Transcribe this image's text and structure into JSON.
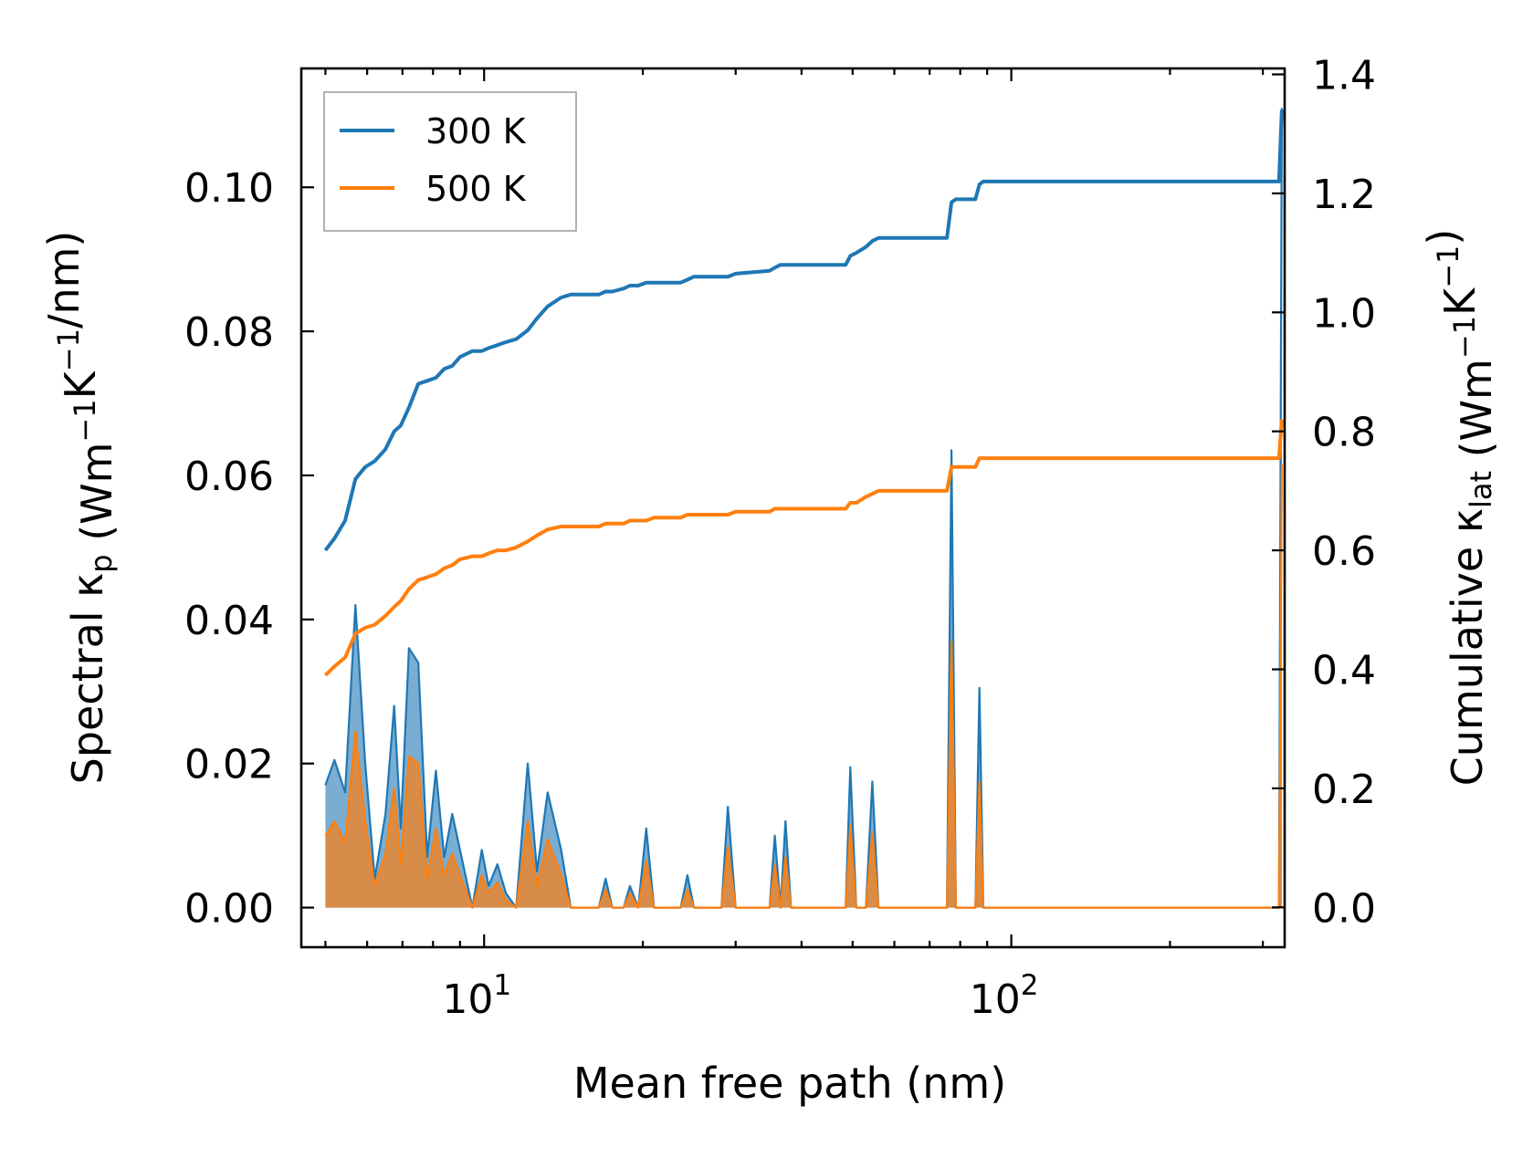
{
  "chart_data": {
    "type": "line",
    "xlabel": "Mean free path (nm)",
    "ylabel_left": "Spectral κ_p (Wm⁻¹K⁻¹/nm)",
    "ylabel_right": "Cumulative κ_lat (Wm⁻¹K⁻¹)",
    "x_scale": "log",
    "xlim": [
      4.5,
      330
    ],
    "x_ticks": [
      {
        "value": 10,
        "base": "10",
        "exp": "1"
      },
      {
        "value": 100,
        "base": "10",
        "exp": "2"
      }
    ],
    "ylim_left": [
      -0.0055,
      0.1165
    ],
    "ylim_right": [
      -0.067,
      1.41
    ],
    "y_ticks_left": [
      {
        "value": 0.0,
        "label": "0.00"
      },
      {
        "value": 0.02,
        "label": "0.02"
      },
      {
        "value": 0.04,
        "label": "0.04"
      },
      {
        "value": 0.06,
        "label": "0.06"
      },
      {
        "value": 0.08,
        "label": "0.08"
      },
      {
        "value": 0.1,
        "label": "0.10"
      }
    ],
    "y_ticks_right": [
      {
        "value": 0.0,
        "label": "0.0"
      },
      {
        "value": 0.2,
        "label": "0.2"
      },
      {
        "value": 0.4,
        "label": "0.4"
      },
      {
        "value": 0.6,
        "label": "0.6"
      },
      {
        "value": 0.8,
        "label": "0.8"
      },
      {
        "value": 1.0,
        "label": "1.0"
      },
      {
        "value": 1.2,
        "label": "1.2"
      },
      {
        "value": 1.4,
        "label": "1.4"
      }
    ],
    "grid": false,
    "legend_position": "top-left",
    "series": [
      {
        "name": "300 K",
        "color": "#1f77b4",
        "spectral": [
          [
            5.0,
            0.017
          ],
          [
            5.2,
            0.0205
          ],
          [
            5.45,
            0.016
          ],
          [
            5.7,
            0.042
          ],
          [
            5.95,
            0.02
          ],
          [
            6.2,
            0.004
          ],
          [
            6.5,
            0.013
          ],
          [
            6.75,
            0.028
          ],
          [
            6.95,
            0.011
          ],
          [
            7.2,
            0.036
          ],
          [
            7.5,
            0.034
          ],
          [
            7.8,
            0.007
          ],
          [
            8.1,
            0.019
          ],
          [
            8.4,
            0.007
          ],
          [
            8.7,
            0.013
          ],
          [
            9.0,
            0.008
          ],
          [
            9.5,
            0.0
          ],
          [
            9.9,
            0.008
          ],
          [
            10.2,
            0.003
          ],
          [
            10.6,
            0.006
          ],
          [
            11.0,
            0.002
          ],
          [
            11.5,
            0.0
          ],
          [
            12.1,
            0.02
          ],
          [
            12.6,
            0.005
          ],
          [
            13.2,
            0.016
          ],
          [
            14.0,
            0.008
          ],
          [
            14.6,
            0.0
          ],
          [
            16.5,
            0.0
          ],
          [
            17.0,
            0.004
          ],
          [
            17.5,
            0.0
          ],
          [
            18.4,
            0.0
          ],
          [
            18.9,
            0.003
          ],
          [
            19.6,
            0.0
          ],
          [
            20.3,
            0.011
          ],
          [
            21.0,
            0.0
          ],
          [
            23.6,
            0.0
          ],
          [
            24.3,
            0.0045
          ],
          [
            25.0,
            0.0
          ],
          [
            28.2,
            0.0
          ],
          [
            29.0,
            0.014
          ],
          [
            30.0,
            0.0
          ],
          [
            34.8,
            0.0
          ],
          [
            35.6,
            0.01
          ],
          [
            36.5,
            0.0
          ],
          [
            37.3,
            0.012
          ],
          [
            38.2,
            0.0
          ],
          [
            48.5,
            0.0
          ],
          [
            49.5,
            0.0195
          ],
          [
            50.8,
            0.0
          ],
          [
            53.0,
            0.0
          ],
          [
            54.5,
            0.0175
          ],
          [
            56.0,
            0.0
          ],
          [
            75.5,
            0.0
          ],
          [
            77.0,
            0.0635
          ],
          [
            78.5,
            0.0
          ],
          [
            85.5,
            0.0
          ],
          [
            87.0,
            0.0305
          ],
          [
            88.5,
            0.0
          ],
          [
            322.0,
            0.0
          ],
          [
            326.0,
            0.111
          ]
        ],
        "cumulative": [
          [
            5.0,
            0.6
          ],
          [
            5.2,
            0.62
          ],
          [
            5.45,
            0.65
          ],
          [
            5.7,
            0.72
          ],
          [
            5.95,
            0.74
          ],
          [
            6.2,
            0.75
          ],
          [
            6.5,
            0.77
          ],
          [
            6.75,
            0.8
          ],
          [
            6.95,
            0.81
          ],
          [
            7.2,
            0.84
          ],
          [
            7.5,
            0.88
          ],
          [
            7.8,
            0.885
          ],
          [
            8.1,
            0.89
          ],
          [
            8.4,
            0.905
          ],
          [
            8.7,
            0.91
          ],
          [
            9.0,
            0.925
          ],
          [
            9.5,
            0.935
          ],
          [
            9.9,
            0.935
          ],
          [
            10.2,
            0.94
          ],
          [
            10.6,
            0.945
          ],
          [
            11.0,
            0.95
          ],
          [
            11.5,
            0.955
          ],
          [
            12.1,
            0.97
          ],
          [
            12.6,
            0.99
          ],
          [
            13.2,
            1.01
          ],
          [
            14.0,
            1.025
          ],
          [
            14.6,
            1.03
          ],
          [
            16.5,
            1.03
          ],
          [
            17.0,
            1.035
          ],
          [
            17.5,
            1.035
          ],
          [
            18.4,
            1.04
          ],
          [
            18.9,
            1.045
          ],
          [
            19.6,
            1.045
          ],
          [
            20.3,
            1.05
          ],
          [
            21.0,
            1.05
          ],
          [
            23.6,
            1.05
          ],
          [
            24.3,
            1.055
          ],
          [
            25.0,
            1.06
          ],
          [
            28.2,
            1.06
          ],
          [
            29.0,
            1.06
          ],
          [
            30.0,
            1.065
          ],
          [
            34.8,
            1.07
          ],
          [
            35.6,
            1.075
          ],
          [
            36.5,
            1.08
          ],
          [
            37.3,
            1.08
          ],
          [
            38.2,
            1.08
          ],
          [
            48.5,
            1.08
          ],
          [
            49.5,
            1.095
          ],
          [
            50.8,
            1.1
          ],
          [
            53.0,
            1.11
          ],
          [
            54.5,
            1.12
          ],
          [
            56.0,
            1.125
          ],
          [
            75.5,
            1.125
          ],
          [
            77.0,
            1.185
          ],
          [
            78.5,
            1.19
          ],
          [
            85.5,
            1.19
          ],
          [
            87.0,
            1.215
          ],
          [
            88.5,
            1.22
          ],
          [
            322.0,
            1.22
          ],
          [
            326.0,
            1.34
          ]
        ]
      },
      {
        "name": "500 K",
        "color": "#ff7f0e",
        "spectral": [
          [
            5.0,
            0.01
          ],
          [
            5.2,
            0.012
          ],
          [
            5.45,
            0.009
          ],
          [
            5.7,
            0.0245
          ],
          [
            5.95,
            0.012
          ],
          [
            6.2,
            0.003
          ],
          [
            6.5,
            0.0075
          ],
          [
            6.75,
            0.0165
          ],
          [
            6.95,
            0.006
          ],
          [
            7.2,
            0.021
          ],
          [
            7.5,
            0.02
          ],
          [
            7.8,
            0.004
          ],
          [
            8.1,
            0.011
          ],
          [
            8.4,
            0.0045
          ],
          [
            8.7,
            0.0075
          ],
          [
            9.0,
            0.0045
          ],
          [
            9.5,
            0.0
          ],
          [
            9.9,
            0.0045
          ],
          [
            10.2,
            0.002
          ],
          [
            10.6,
            0.0035
          ],
          [
            11.0,
            0.001
          ],
          [
            11.5,
            0.0
          ],
          [
            12.1,
            0.012
          ],
          [
            12.6,
            0.003
          ],
          [
            13.2,
            0.0095
          ],
          [
            14.0,
            0.0045
          ],
          [
            14.6,
            0.0
          ],
          [
            16.5,
            0.0
          ],
          [
            17.0,
            0.0025
          ],
          [
            17.5,
            0.0
          ],
          [
            18.4,
            0.0
          ],
          [
            18.9,
            0.002
          ],
          [
            19.6,
            0.0
          ],
          [
            20.3,
            0.0065
          ],
          [
            21.0,
            0.0
          ],
          [
            23.6,
            0.0
          ],
          [
            24.3,
            0.0025
          ],
          [
            25.0,
            0.0
          ],
          [
            28.2,
            0.0
          ],
          [
            29.0,
            0.0085
          ],
          [
            30.0,
            0.0
          ],
          [
            34.8,
            0.0
          ],
          [
            35.6,
            0.006
          ],
          [
            36.5,
            0.0
          ],
          [
            37.3,
            0.007
          ],
          [
            38.2,
            0.0
          ],
          [
            48.5,
            0.0
          ],
          [
            49.5,
            0.0115
          ],
          [
            50.8,
            0.0
          ],
          [
            53.0,
            0.0
          ],
          [
            54.5,
            0.0105
          ],
          [
            56.0,
            0.0
          ],
          [
            75.5,
            0.0
          ],
          [
            77.0,
            0.037
          ],
          [
            78.5,
            0.0
          ],
          [
            85.5,
            0.0
          ],
          [
            87.0,
            0.0175
          ],
          [
            88.5,
            0.0
          ],
          [
            322.0,
            0.0
          ],
          [
            326.0,
            0.0615
          ]
        ],
        "cumulative": [
          [
            5.0,
            0.39
          ],
          [
            5.2,
            0.405
          ],
          [
            5.45,
            0.42
          ],
          [
            5.7,
            0.46
          ],
          [
            5.95,
            0.47
          ],
          [
            6.2,
            0.475
          ],
          [
            6.5,
            0.49
          ],
          [
            6.75,
            0.505
          ],
          [
            6.95,
            0.515
          ],
          [
            7.2,
            0.535
          ],
          [
            7.5,
            0.55
          ],
          [
            7.8,
            0.555
          ],
          [
            8.1,
            0.56
          ],
          [
            8.4,
            0.57
          ],
          [
            8.7,
            0.575
          ],
          [
            9.0,
            0.585
          ],
          [
            9.5,
            0.59
          ],
          [
            9.9,
            0.59
          ],
          [
            10.2,
            0.595
          ],
          [
            10.6,
            0.6
          ],
          [
            11.0,
            0.6
          ],
          [
            11.5,
            0.605
          ],
          [
            12.1,
            0.615
          ],
          [
            12.6,
            0.625
          ],
          [
            13.2,
            0.635
          ],
          [
            14.0,
            0.64
          ],
          [
            14.6,
            0.64
          ],
          [
            16.5,
            0.64
          ],
          [
            17.0,
            0.645
          ],
          [
            17.5,
            0.645
          ],
          [
            18.4,
            0.645
          ],
          [
            18.9,
            0.65
          ],
          [
            19.6,
            0.65
          ],
          [
            20.3,
            0.65
          ],
          [
            21.0,
            0.655
          ],
          [
            23.6,
            0.655
          ],
          [
            24.3,
            0.66
          ],
          [
            25.0,
            0.66
          ],
          [
            28.2,
            0.66
          ],
          [
            29.0,
            0.66
          ],
          [
            30.0,
            0.665
          ],
          [
            34.8,
            0.665
          ],
          [
            35.6,
            0.67
          ],
          [
            36.5,
            0.67
          ],
          [
            37.3,
            0.67
          ],
          [
            38.2,
            0.67
          ],
          [
            48.5,
            0.67
          ],
          [
            49.5,
            0.68
          ],
          [
            50.8,
            0.68
          ],
          [
            53.0,
            0.69
          ],
          [
            54.5,
            0.695
          ],
          [
            56.0,
            0.7
          ],
          [
            75.5,
            0.7
          ],
          [
            77.0,
            0.74
          ],
          [
            78.5,
            0.74
          ],
          [
            85.5,
            0.74
          ],
          [
            87.0,
            0.755
          ],
          [
            88.5,
            0.755
          ],
          [
            322.0,
            0.755
          ],
          [
            326.0,
            0.82
          ]
        ]
      }
    ]
  }
}
